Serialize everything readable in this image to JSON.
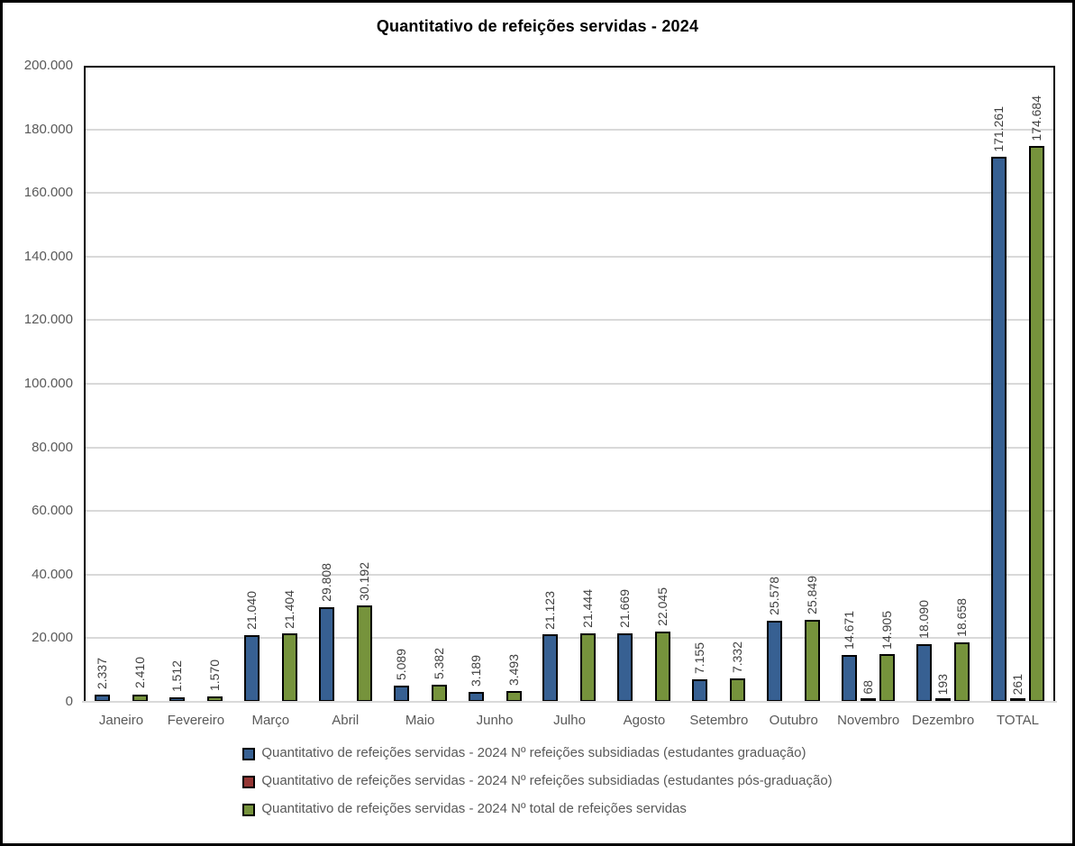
{
  "chart_data": {
    "type": "bar",
    "title": "Quantitativo de refeições servidas - 2024",
    "xlabel": "",
    "ylabel": "",
    "ylim": [
      0,
      200000
    ],
    "ytick_step": 20000,
    "ytick_labels": [
      "0",
      "20.000",
      "40.000",
      "60.000",
      "80.000",
      "100.000",
      "120.000",
      "140.000",
      "160.000",
      "180.000",
      "200.000"
    ],
    "grid": true,
    "legend_position": "bottom",
    "categories": [
      "Janeiro",
      "Fevereiro",
      "Março",
      "Abril",
      "Maio",
      "Junho",
      "Julho",
      "Agosto",
      "Setembro",
      "Outubro",
      "Novembro",
      "Dezembro",
      "TOTAL"
    ],
    "series": [
      {
        "name": "Quantitativo de refeições servidas - 2024 Nº refeições subsidiadas (estudantes graduação)",
        "color": "#376092",
        "values": [
          2337,
          1512,
          21040,
          29808,
          5089,
          3189,
          21123,
          21669,
          7155,
          25578,
          14671,
          18090,
          171261
        ],
        "labels": [
          "2.337",
          "1.512",
          "21.040",
          "29.808",
          "5.089",
          "3.189",
          "21.123",
          "21.669",
          "7.155",
          "25.578",
          "14.671",
          "18.090",
          "171.261"
        ]
      },
      {
        "name": "Quantitativo de refeições servidas - 2024 Nº refeições subsidiadas (estudantes pós-graduação)",
        "color": "#943634",
        "values": [
          0,
          0,
          0,
          0,
          0,
          0,
          0,
          0,
          0,
          0,
          68,
          193,
          261
        ],
        "labels": [
          "",
          "",
          "",
          "",
          "",
          "",
          "",
          "",
          "",
          "",
          "68",
          "193",
          "261"
        ]
      },
      {
        "name": "Quantitativo de refeições servidas - 2024 Nº total de refeições servidas",
        "color": "#76933C",
        "values": [
          2410,
          1570,
          21404,
          30192,
          5382,
          3493,
          21444,
          22045,
          7332,
          25849,
          14905,
          18658,
          174684
        ],
        "labels": [
          "2.410",
          "1.570",
          "21.404",
          "30.192",
          "5.382",
          "3.493",
          "21.444",
          "22.045",
          "7.332",
          "25.849",
          "14.905",
          "18.658",
          "174.684"
        ]
      }
    ]
  }
}
